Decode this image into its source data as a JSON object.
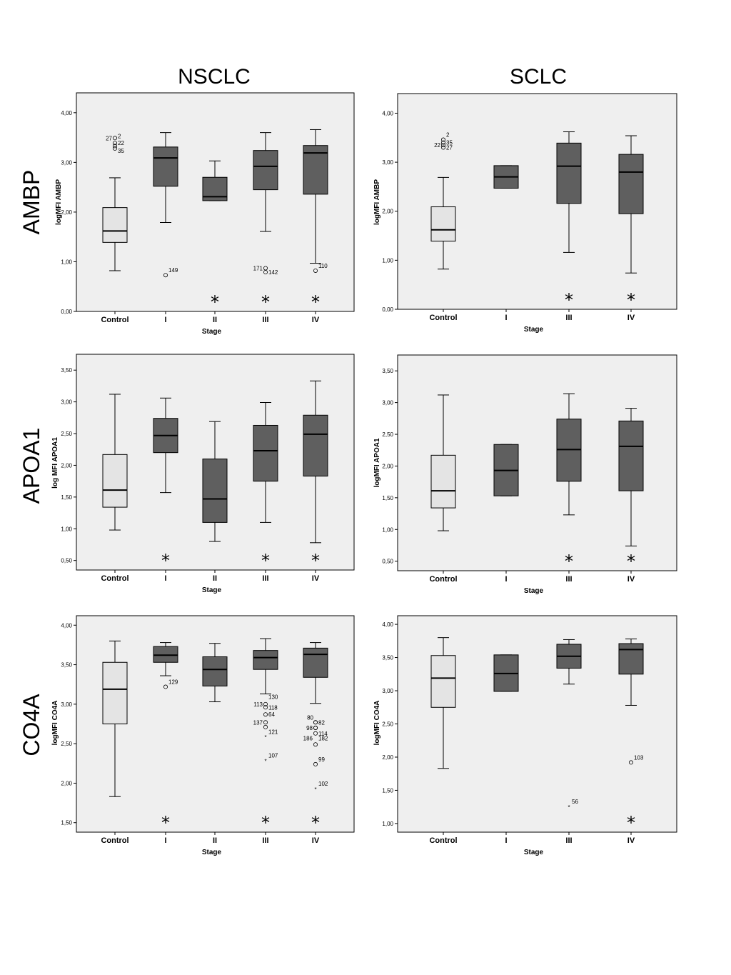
{
  "columns": [
    "NSCLC",
    "SCLC"
  ],
  "rows": [
    "AMBP",
    "APOA1",
    "CO4A"
  ],
  "colors": {
    "control_box": "#e4e4e4",
    "stage_box": "#5f5f5f",
    "panel_bg": "#efefef"
  },
  "chart_data": [
    {
      "type": "box",
      "column": "NSCLC",
      "row": "AMBP",
      "xlabel": "Stage",
      "ylabel": "logMFI AMBP",
      "ylim": [
        0,
        4.4
      ],
      "yticks": [
        "0,00",
        "1,00",
        "2,00",
        "3,00",
        "4,00"
      ],
      "ytick_values": [
        0,
        1,
        2,
        3,
        4
      ],
      "categories": [
        "Control",
        "I",
        "II",
        "III",
        "IV"
      ],
      "boxes": [
        {
          "min": 0.82,
          "q1": 1.39,
          "median": 1.62,
          "q3": 2.09,
          "max": 2.69
        },
        {
          "min": 1.79,
          "q1": 2.52,
          "median": 3.09,
          "q3": 3.31,
          "max": 3.6
        },
        {
          "min": 2.23,
          "q1": 2.23,
          "median": 2.31,
          "q3": 2.7,
          "max": 3.03
        },
        {
          "min": 1.61,
          "q1": 2.45,
          "median": 2.92,
          "q3": 3.24,
          "max": 3.6
        },
        {
          "min": 0.97,
          "q1": 2.36,
          "median": 3.19,
          "q3": 3.34,
          "max": 3.66
        }
      ],
      "outliers": [
        {
          "cat": 0,
          "y": 3.49,
          "marker": "o",
          "label": "27",
          "side": "left"
        },
        {
          "cat": 0,
          "y": 3.53,
          "marker": "none",
          "label": "2",
          "side": "right"
        },
        {
          "cat": 0,
          "y": 3.39,
          "marker": "o",
          "label": "22",
          "side": "right"
        },
        {
          "cat": 0,
          "y": 3.33,
          "marker": "o",
          "label": "",
          "side": "right"
        },
        {
          "cat": 0,
          "y": 3.28,
          "marker": "o",
          "label": "35",
          "side": "right-low"
        },
        {
          "cat": 1,
          "y": 0.73,
          "marker": "o",
          "label": "149",
          "side": "right-high"
        },
        {
          "cat": 3,
          "y": 0.87,
          "marker": "o",
          "label": "171",
          "side": "left"
        },
        {
          "cat": 3,
          "y": 0.79,
          "marker": "o",
          "label": "142",
          "side": "right"
        },
        {
          "cat": 4,
          "y": 0.82,
          "marker": "o",
          "label": "110",
          "side": "right-high"
        }
      ],
      "significant": [
        2,
        3,
        4
      ]
    },
    {
      "type": "box",
      "column": "SCLC",
      "row": "AMBP",
      "xlabel": "Stage",
      "ylabel": "logMFI AMBP",
      "ylim": [
        0,
        4.4
      ],
      "yticks": [
        "0,00",
        "1,00",
        "2,00",
        "3,00",
        "4,00"
      ],
      "ytick_values": [
        0,
        1,
        2,
        3,
        4
      ],
      "categories": [
        "Control",
        "I",
        "III",
        "IV"
      ],
      "boxes": [
        {
          "min": 0.82,
          "q1": 1.39,
          "median": 1.62,
          "q3": 2.09,
          "max": 2.69
        },
        {
          "min": 2.47,
          "q1": 2.47,
          "median": 2.7,
          "q3": 2.93,
          "max": 2.93
        },
        {
          "min": 1.16,
          "q1": 2.16,
          "median": 2.92,
          "q3": 3.39,
          "max": 3.62
        },
        {
          "min": 0.74,
          "q1": 1.95,
          "median": 2.8,
          "q3": 3.16,
          "max": 3.54
        }
      ],
      "outliers": [
        {
          "cat": 0,
          "y": 3.46,
          "marker": "o",
          "label": "2",
          "side": "right-high"
        },
        {
          "cat": 0,
          "y": 3.4,
          "marker": "o",
          "label": "35",
          "side": "right"
        },
        {
          "cat": 0,
          "y": 3.35,
          "marker": "o",
          "label": "22",
          "side": "left"
        },
        {
          "cat": 0,
          "y": 3.3,
          "marker": "o",
          "label": "27",
          "side": "right"
        }
      ],
      "significant": [
        2,
        3
      ]
    },
    {
      "type": "box",
      "column": "NSCLC",
      "row": "APOA1",
      "xlabel": "Stage",
      "ylabel": "log MFI APOA1",
      "ylim": [
        0.35,
        3.75
      ],
      "yticks": [
        "0,50",
        "1,00",
        "1,50",
        "2,00",
        "2,50",
        "3,00",
        "3,50"
      ],
      "ytick_values": [
        0.5,
        1,
        1.5,
        2,
        2.5,
        3,
        3.5
      ],
      "categories": [
        "Control",
        "I",
        "II",
        "III",
        "IV"
      ],
      "boxes": [
        {
          "min": 0.98,
          "q1": 1.34,
          "median": 1.61,
          "q3": 2.17,
          "max": 3.12
        },
        {
          "min": 1.57,
          "q1": 2.2,
          "median": 2.47,
          "q3": 2.74,
          "max": 3.06
        },
        {
          "min": 0.8,
          "q1": 1.1,
          "median": 1.47,
          "q3": 2.1,
          "max": 2.69
        },
        {
          "min": 1.1,
          "q1": 1.75,
          "median": 2.23,
          "q3": 2.63,
          "max": 2.99
        },
        {
          "min": 0.78,
          "q1": 1.83,
          "median": 2.49,
          "q3": 2.79,
          "max": 3.33
        }
      ],
      "outliers": [],
      "significant": [
        1,
        3,
        4
      ]
    },
    {
      "type": "box",
      "column": "SCLC",
      "row": "APOA1",
      "xlabel": "Stage",
      "ylabel": "logMFI APOA1",
      "ylim": [
        0.35,
        3.75
      ],
      "yticks": [
        "0,50",
        "1,00",
        "1,50",
        "2,00",
        "2,50",
        "3,00",
        "3,50"
      ],
      "ytick_values": [
        0.5,
        1,
        1.5,
        2,
        2.5,
        3,
        3.5
      ],
      "categories": [
        "Control",
        "I",
        "III",
        "IV"
      ],
      "boxes": [
        {
          "min": 0.98,
          "q1": 1.34,
          "median": 1.61,
          "q3": 2.17,
          "max": 3.12
        },
        {
          "min": 1.53,
          "q1": 1.53,
          "median": 1.93,
          "q3": 2.34,
          "max": 2.34
        },
        {
          "min": 1.23,
          "q1": 1.76,
          "median": 2.26,
          "q3": 2.74,
          "max": 3.14
        },
        {
          "min": 0.74,
          "q1": 1.61,
          "median": 2.31,
          "q3": 2.71,
          "max": 2.91
        }
      ],
      "outliers": [],
      "significant": [
        2,
        3
      ]
    },
    {
      "type": "box",
      "column": "NSCLC",
      "row": "CO4A",
      "xlabel": "Stage",
      "ylabel": "logMFI CO4A",
      "ylim": [
        1.38,
        4.12
      ],
      "yticks": [
        "1,50",
        "2,00",
        "2,50",
        "3,00",
        "3,50",
        "4,00"
      ],
      "ytick_values": [
        1.5,
        2,
        2.5,
        3,
        3.5,
        4
      ],
      "categories": [
        "Control",
        "I",
        "II",
        "III",
        "IV"
      ],
      "boxes": [
        {
          "min": 1.83,
          "q1": 2.75,
          "median": 3.19,
          "q3": 3.53,
          "max": 3.8
        },
        {
          "min": 3.36,
          "q1": 3.53,
          "median": 3.62,
          "q3": 3.73,
          "max": 3.78
        },
        {
          "min": 3.03,
          "q1": 3.23,
          "median": 3.44,
          "q3": 3.6,
          "max": 3.77
        },
        {
          "min": 3.13,
          "q1": 3.44,
          "median": 3.59,
          "q3": 3.68,
          "max": 3.83
        },
        {
          "min": 3.01,
          "q1": 3.34,
          "median": 3.63,
          "q3": 3.71,
          "max": 3.78
        }
      ],
      "outliers": [
        {
          "cat": 1,
          "y": 3.22,
          "marker": "o",
          "label": "129",
          "side": "right-high"
        },
        {
          "cat": 3,
          "y": 3.0,
          "marker": "o",
          "label": "113",
          "side": "left"
        },
        {
          "cat": 3,
          "y": 3.03,
          "marker": "none",
          "label": "130",
          "side": "right-high"
        },
        {
          "cat": 3,
          "y": 2.96,
          "marker": "o",
          "label": "118",
          "side": "right"
        },
        {
          "cat": 3,
          "y": 2.87,
          "marker": "o",
          "label": "64",
          "side": "right"
        },
        {
          "cat": 3,
          "y": 2.77,
          "marker": "o",
          "label": "137",
          "side": "left"
        },
        {
          "cat": 3,
          "y": 2.71,
          "marker": "o",
          "label": "",
          "side": "right"
        },
        {
          "cat": 3,
          "y": 2.65,
          "marker": "none",
          "label": "121",
          "side": "right"
        },
        {
          "cat": 3,
          "y": 2.59,
          "marker": "*",
          "label": "",
          "side": "right"
        },
        {
          "cat": 3,
          "y": 2.29,
          "marker": "*",
          "label": "107",
          "side": "right-high"
        },
        {
          "cat": 4,
          "y": 2.77,
          "marker": "o",
          "label": "80",
          "side": "left-high"
        },
        {
          "cat": 4,
          "y": 2.77,
          "marker": "o",
          "label": "82",
          "side": "right"
        },
        {
          "cat": 4,
          "y": 2.7,
          "marker": "o",
          "label": "98",
          "side": "left"
        },
        {
          "cat": 4,
          "y": 2.7,
          "marker": "o",
          "label": "",
          "side": "right"
        },
        {
          "cat": 4,
          "y": 2.63,
          "marker": "o",
          "label": "114",
          "side": "right"
        },
        {
          "cat": 4,
          "y": 2.57,
          "marker": "none",
          "label": "186",
          "side": "left"
        },
        {
          "cat": 4,
          "y": 2.57,
          "marker": "none",
          "label": "182",
          "side": "right"
        },
        {
          "cat": 4,
          "y": 2.49,
          "marker": "o",
          "label": "",
          "side": "right"
        },
        {
          "cat": 4,
          "y": 2.24,
          "marker": "o",
          "label": "99",
          "side": "right-high"
        },
        {
          "cat": 4,
          "y": 1.93,
          "marker": "*",
          "label": "102",
          "side": "right-high"
        }
      ],
      "significant": [
        1,
        3,
        4
      ]
    },
    {
      "type": "box",
      "column": "SCLC",
      "row": "CO4A",
      "xlabel": "Stage",
      "ylabel": "logMFI CO4A",
      "ylim": [
        0.87,
        4.13
      ],
      "yticks": [
        "1,00",
        "1,50",
        "2,00",
        "2,50",
        "3,00",
        "3,50",
        "4,00"
      ],
      "ytick_values": [
        1,
        1.5,
        2,
        2.5,
        3,
        3.5,
        4
      ],
      "categories": [
        "Control",
        "I",
        "III",
        "IV"
      ],
      "boxes": [
        {
          "min": 1.83,
          "q1": 2.75,
          "median": 3.19,
          "q3": 3.53,
          "max": 3.8
        },
        {
          "min": 2.99,
          "q1": 2.99,
          "median": 3.26,
          "q3": 3.54,
          "max": 3.54
        },
        {
          "min": 3.1,
          "q1": 3.34,
          "median": 3.52,
          "q3": 3.7,
          "max": 3.77
        },
        {
          "min": 2.78,
          "q1": 3.25,
          "median": 3.62,
          "q3": 3.71,
          "max": 3.78
        }
      ],
      "outliers": [
        {
          "cat": 2,
          "y": 1.26,
          "marker": "*",
          "label": "56",
          "side": "right-high"
        },
        {
          "cat": 3,
          "y": 1.92,
          "marker": "o",
          "label": "103",
          "side": "right-high"
        }
      ],
      "significant": [
        3
      ]
    }
  ]
}
